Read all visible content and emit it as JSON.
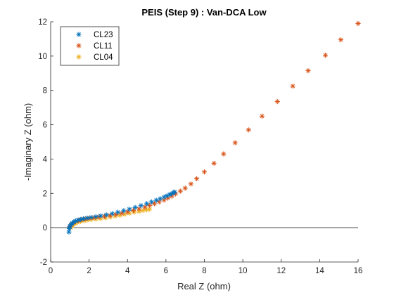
{
  "chart_data": {
    "type": "scatter",
    "title": "PEIS (Step 9) : Van-DCA Low",
    "xlabel": "Real Z (ohm)",
    "ylabel": "-Imaginary Z (ohm)",
    "xlim": [
      0,
      16
    ],
    "ylim": [
      -2,
      12
    ],
    "xticks": [
      "0",
      "2",
      "4",
      "6",
      "8",
      "10",
      "12",
      "14",
      "16"
    ],
    "yticks": [
      "-2",
      "0",
      "2",
      "4",
      "6",
      "8",
      "10",
      "12"
    ],
    "legend_position": "top-left",
    "reference_line_y": 0,
    "series": [
      {
        "name": "CL23",
        "color": "#0072BD",
        "marker": "asterisk",
        "x": [
          0.95,
          0.97,
          1.0,
          1.05,
          1.12,
          1.2,
          1.3,
          1.42,
          1.55,
          1.7,
          1.9,
          2.1,
          2.35,
          2.6,
          2.9,
          3.2,
          3.5,
          3.8,
          4.1,
          4.4,
          4.7,
          5.0,
          5.25,
          5.5,
          5.7,
          5.9,
          6.05,
          6.2,
          6.3,
          6.4,
          6.45
        ],
        "y": [
          -0.25,
          -0.05,
          0.08,
          0.18,
          0.26,
          0.33,
          0.39,
          0.44,
          0.48,
          0.52,
          0.56,
          0.6,
          0.64,
          0.69,
          0.75,
          0.82,
          0.9,
          0.99,
          1.08,
          1.18,
          1.29,
          1.4,
          1.5,
          1.6,
          1.69,
          1.78,
          1.86,
          1.93,
          1.99,
          2.04,
          2.08
        ]
      },
      {
        "name": "CL11",
        "color": "#D95319",
        "marker": "asterisk",
        "x": [
          1.0,
          1.05,
          1.12,
          1.2,
          1.3,
          1.45,
          1.6,
          1.8,
          2.0,
          2.25,
          2.5,
          2.8,
          3.1,
          3.4,
          3.7,
          4.0,
          4.3,
          4.6,
          4.9,
          5.15,
          5.4,
          5.65,
          5.9,
          6.1,
          6.3,
          6.5,
          6.75,
          7.0,
          7.3,
          7.6,
          8.0,
          8.5,
          9.0,
          9.6,
          10.3,
          11.0,
          11.8,
          12.6,
          13.4,
          14.3,
          15.1,
          16.0
        ],
        "y": [
          0.05,
          0.15,
          0.24,
          0.31,
          0.37,
          0.42,
          0.47,
          0.51,
          0.55,
          0.58,
          0.62,
          0.66,
          0.71,
          0.77,
          0.84,
          0.92,
          1.01,
          1.1,
          1.2,
          1.3,
          1.4,
          1.5,
          1.61,
          1.72,
          1.84,
          1.97,
          2.13,
          2.3,
          2.55,
          2.85,
          3.25,
          3.75,
          4.3,
          4.95,
          5.7,
          6.5,
          7.35,
          8.25,
          9.15,
          10.05,
          10.95,
          11.9
        ]
      },
      {
        "name": "CL04",
        "color": "#EDB120",
        "marker": "asterisk",
        "x": [
          1.05,
          1.1,
          1.18,
          1.28,
          1.4,
          1.55,
          1.72,
          1.9,
          2.1,
          2.35,
          2.6,
          2.85,
          3.1,
          3.35,
          3.6,
          3.85,
          4.1,
          4.35,
          4.6,
          4.8,
          5.0,
          5.15
        ],
        "y": [
          0.0,
          0.1,
          0.18,
          0.25,
          0.31,
          0.36,
          0.4,
          0.44,
          0.47,
          0.5,
          0.53,
          0.57,
          0.62,
          0.67,
          0.72,
          0.78,
          0.84,
          0.9,
          0.95,
          1.0,
          1.04,
          1.08
        ]
      }
    ]
  }
}
